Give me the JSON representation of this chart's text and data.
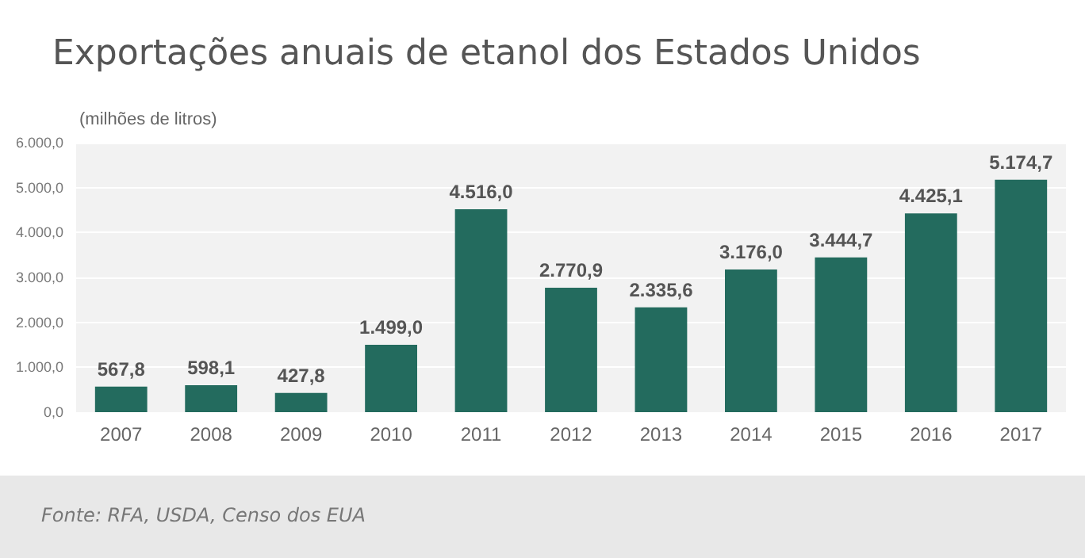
{
  "chart_data": {
    "type": "bar",
    "title": "Exportações anuais de etanol dos Estados Unidos",
    "ylabel": "(milhões de litros)",
    "categories": [
      "2007",
      "2008",
      "2009",
      "2010",
      "2011",
      "2012",
      "2013",
      "2014",
      "2015",
      "2016",
      "2017"
    ],
    "values": [
      567.8,
      598.1,
      427.8,
      1499.0,
      4516.0,
      2770.9,
      2335.6,
      3176.0,
      3444.7,
      4425.1,
      5174.7
    ],
    "value_labels": [
      "567,8",
      "598,1",
      "427,8",
      "1.499,0",
      "4.516,0",
      "2.770,9",
      "2.335,6",
      "3.176,0",
      "3.444,7",
      "4.425,1",
      "5.174,7"
    ],
    "color": "#236b5e",
    "ylim": [
      0,
      6000
    ],
    "yticks": [
      {
        "value": 0,
        "label": "0,0"
      },
      {
        "value": 1000,
        "label": "1.000,0"
      },
      {
        "value": 2000,
        "label": "2.000,0"
      },
      {
        "value": 3000,
        "label": "3.000,0"
      },
      {
        "value": 4000,
        "label": "4.000,0"
      },
      {
        "value": 5000,
        "label": "5.000,0"
      },
      {
        "value": 6000,
        "label": "6.000,0"
      }
    ],
    "grid": "y",
    "annotations": [
      "Fonte: RFA, USDA, Censo dos EUA"
    ]
  }
}
